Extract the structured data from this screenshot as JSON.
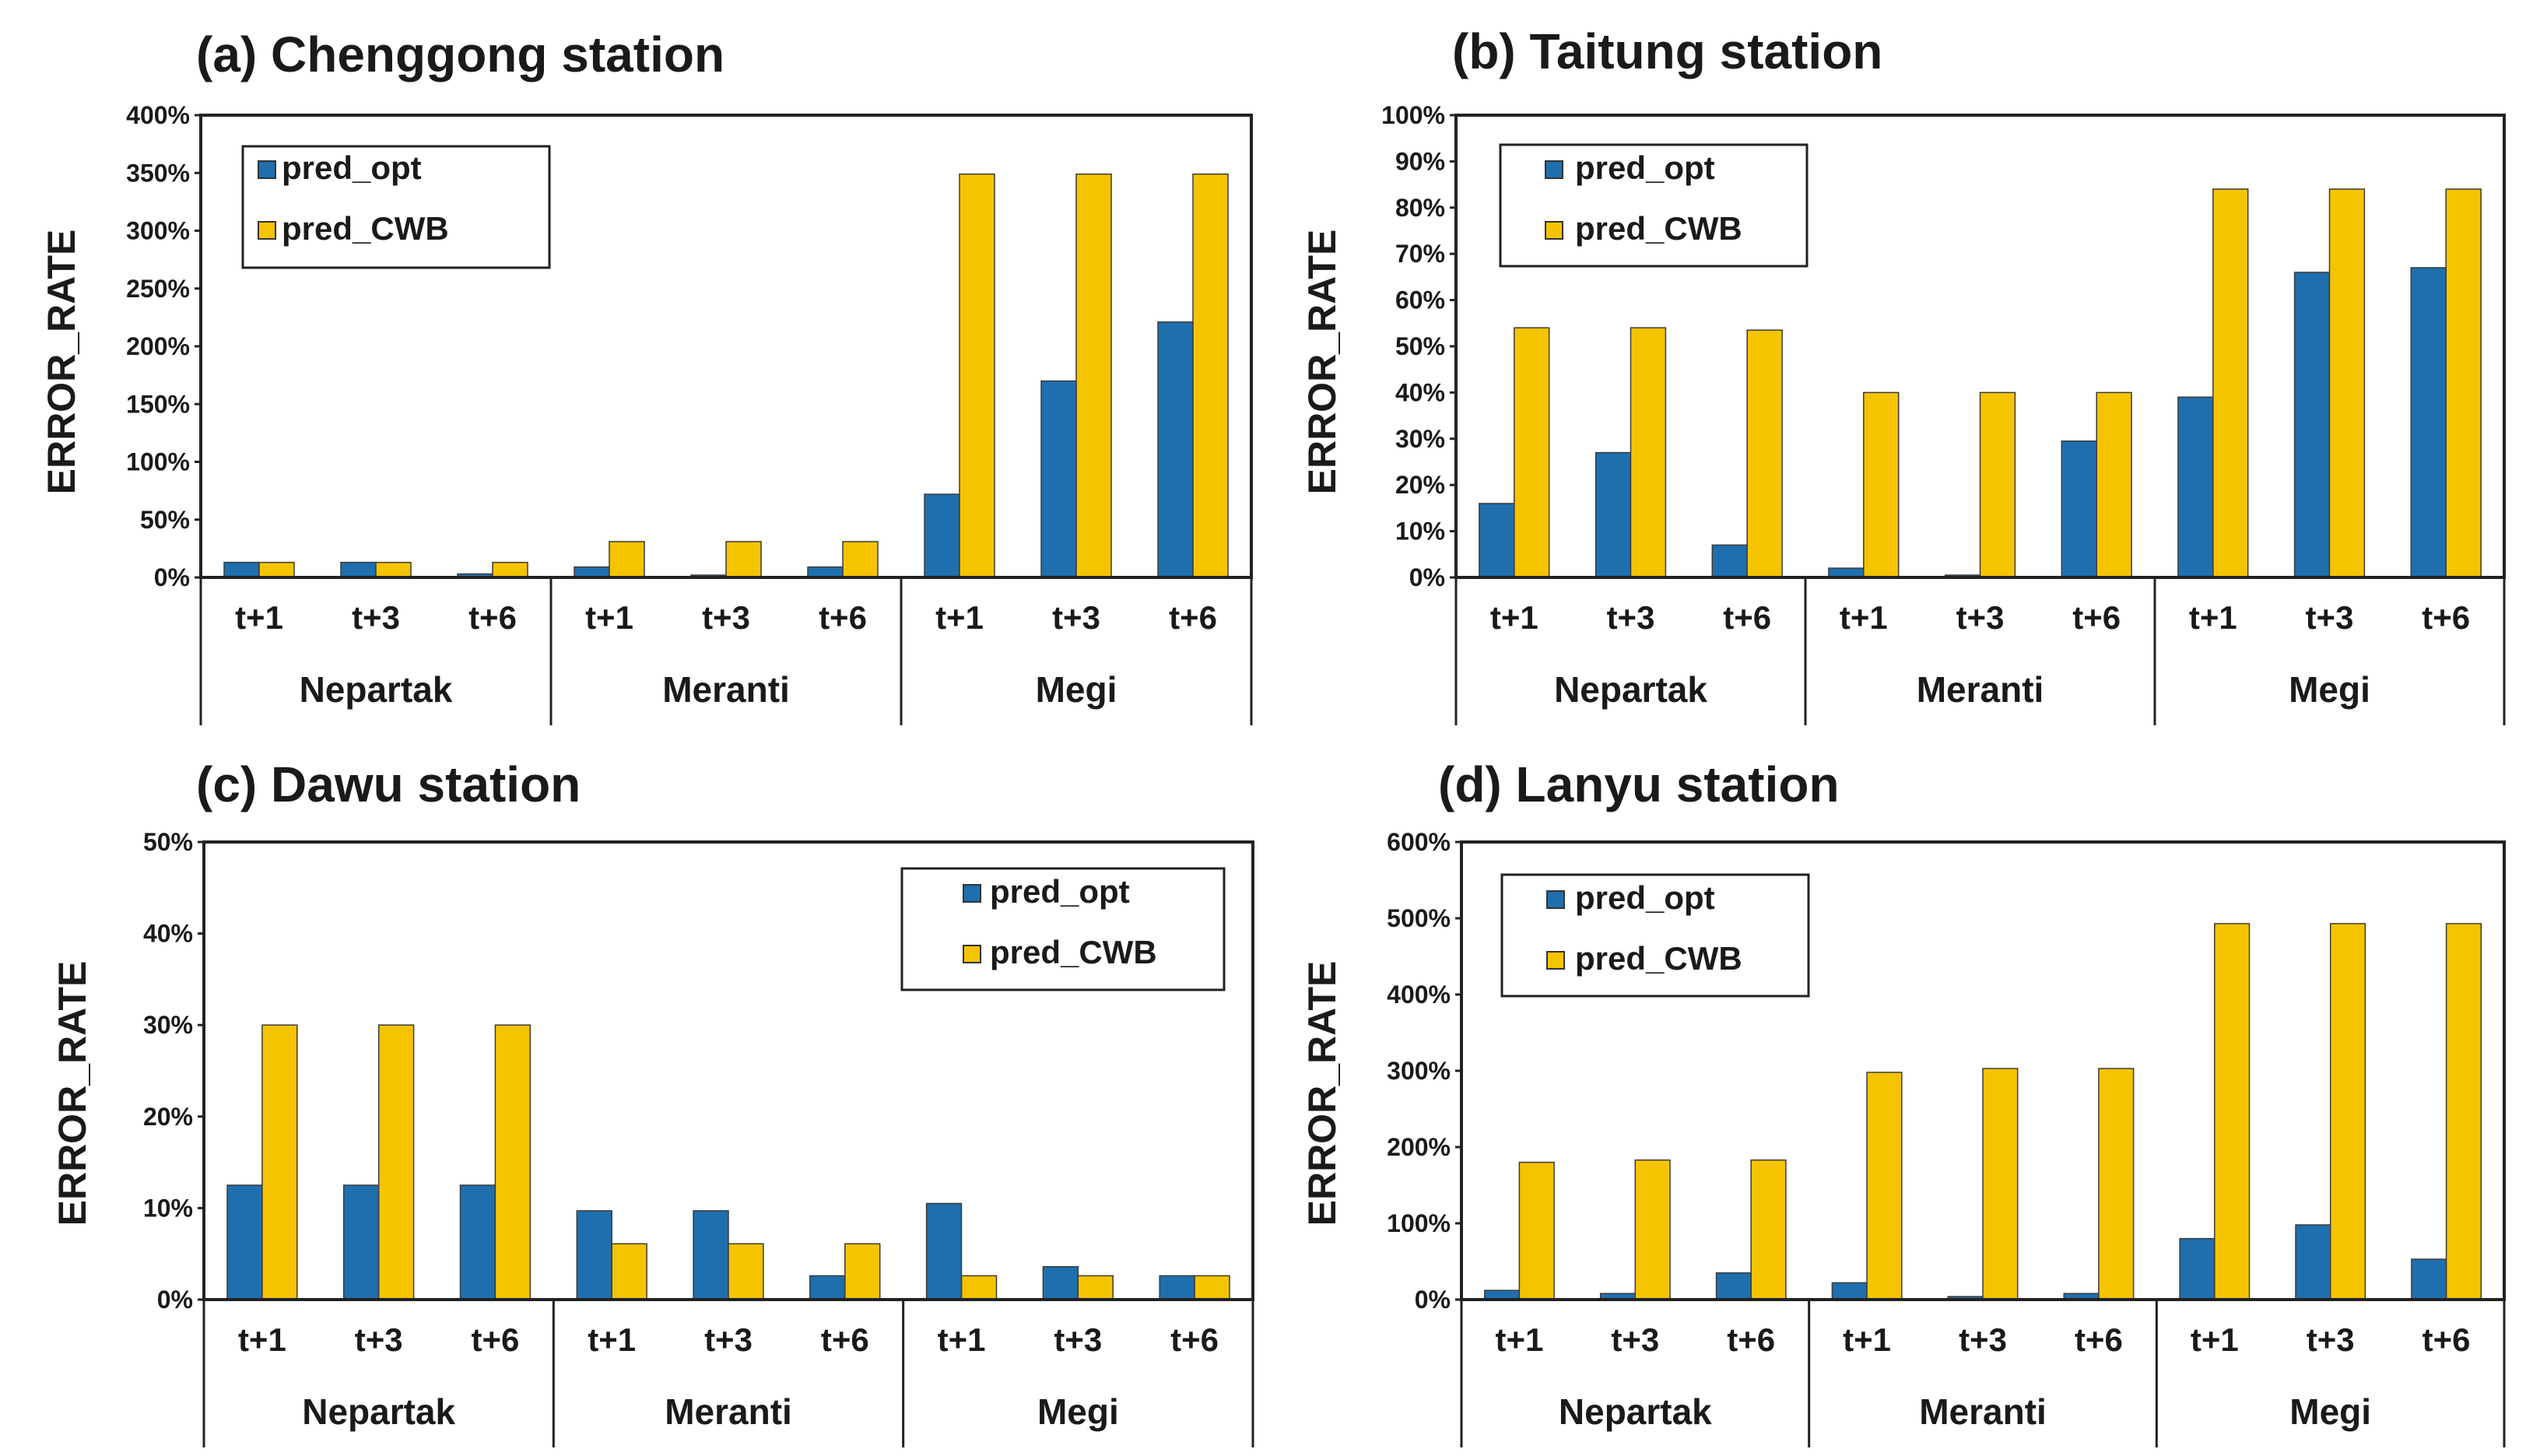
{
  "colors": {
    "pred_opt": "#1f6fae",
    "pred_CWB": "#f5c400",
    "axis": "#222222",
    "bar_edge": "#3a3a3a"
  },
  "chart_data": [
    {
      "type": "bar",
      "title": "(a) Chenggong station",
      "ylabel": "ERROR_RATE",
      "ylim": [
        0,
        400
      ],
      "ytick_step": 50,
      "ytick_labels": [
        "0%",
        "50%",
        "100%",
        "150%",
        "200%",
        "250%",
        "300%",
        "350%",
        "400%"
      ],
      "legend_position": "top-left",
      "groups": [
        "Nepartak",
        "Meranti",
        "Megi"
      ],
      "categories": [
        "t+1",
        "t+3",
        "t+6",
        "t+1",
        "t+3",
        "t+6",
        "t+1",
        "t+3",
        "t+6"
      ],
      "series": [
        {
          "name": "pred_opt",
          "values": [
            13,
            13,
            3,
            9,
            2,
            9,
            72,
            170,
            221
          ]
        },
        {
          "name": "pred_CWB",
          "values": [
            13,
            13,
            13,
            31,
            31,
            31,
            349,
            349,
            349
          ]
        }
      ]
    },
    {
      "type": "bar",
      "title": "(b) Taitung station",
      "ylabel": "ERROR_RATE",
      "ylim": [
        0,
        100
      ],
      "ytick_step": 10,
      "ytick_labels": [
        "0%",
        "10%",
        "20%",
        "30%",
        "40%",
        "50%",
        "60%",
        "70%",
        "80%",
        "90%",
        "100%"
      ],
      "legend_position": "top-left",
      "groups": [
        "Nepartak",
        "Meranti",
        "Megi"
      ],
      "categories": [
        "t+1",
        "t+3",
        "t+6",
        "t+1",
        "t+3",
        "t+6",
        "t+1",
        "t+3",
        "t+6"
      ],
      "series": [
        {
          "name": "pred_opt",
          "values": [
            16,
            27,
            7,
            2,
            0.5,
            29.5,
            39,
            66,
            67
          ]
        },
        {
          "name": "pred_CWB",
          "values": [
            54,
            54,
            53.5,
            40,
            40,
            40,
            84,
            84,
            84
          ]
        }
      ]
    },
    {
      "type": "bar",
      "title": "(c) Dawu station",
      "ylabel": "ERROR_RATE",
      "ylim": [
        0,
        50
      ],
      "ytick_step": 10,
      "ytick_labels": [
        "0%",
        "10%",
        "20%",
        "30%",
        "40%",
        "50%"
      ],
      "legend_position": "top-right",
      "groups": [
        "Nepartak",
        "Meranti",
        "Megi"
      ],
      "categories": [
        "t+1",
        "t+3",
        "t+6",
        "t+1",
        "t+3",
        "t+6",
        "t+1",
        "t+3",
        "t+6"
      ],
      "series": [
        {
          "name": "pred_opt",
          "values": [
            12.5,
            12.5,
            12.5,
            9.7,
            9.7,
            2.6,
            10.5,
            3.6,
            2.6
          ]
        },
        {
          "name": "pred_CWB",
          "values": [
            30,
            30,
            30,
            6.1,
            6.1,
            6.1,
            2.6,
            2.6,
            2.6
          ]
        }
      ]
    },
    {
      "type": "bar",
      "title": "(d) Lanyu station",
      "ylabel": "ERROR_RATE",
      "ylim": [
        0,
        600
      ],
      "ytick_step": 100,
      "ytick_labels": [
        "0%",
        "100%",
        "200%",
        "300%",
        "400%",
        "500%",
        "600%"
      ],
      "legend_position": "top-left",
      "groups": [
        "Nepartak",
        "Meranti",
        "Megi"
      ],
      "categories": [
        "t+1",
        "t+3",
        "t+6",
        "t+1",
        "t+3",
        "t+6",
        "t+1",
        "t+3",
        "t+6"
      ],
      "series": [
        {
          "name": "pred_opt",
          "values": [
            12,
            8,
            35,
            22,
            4,
            8,
            80,
            98,
            53
          ]
        },
        {
          "name": "pred_CWB",
          "values": [
            180,
            183,
            183,
            298,
            303,
            303,
            493,
            493,
            493
          ]
        }
      ]
    }
  ]
}
